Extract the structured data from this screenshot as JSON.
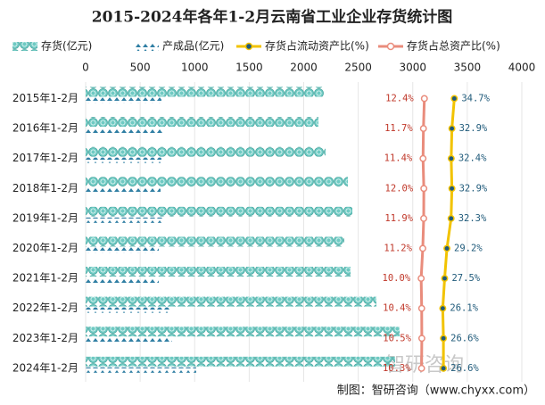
{
  "chart_data": {
    "type": "bar",
    "orientation": "horizontal",
    "title": "2015-2024年各年1-2月云南省工业企业存货统计图",
    "source": "制图：智研咨询（www.chyxx.com）",
    "watermark": "智研咨询",
    "categories": [
      "2015年1-2月",
      "2016年1-2月",
      "2017年1-2月",
      "2018年1-2月",
      "2019年1-2月",
      "2020年1-2月",
      "2021年1-2月",
      "2022年1-2月",
      "2023年1-2月",
      "2024年1-2月"
    ],
    "xlim": [
      0,
      4000
    ],
    "xticks": [
      0,
      500,
      1000,
      1500,
      2000,
      2500,
      3000,
      3500,
      4000
    ],
    "x2lim": [
      -240,
      85
    ],
    "grid": true,
    "legend": "top",
    "series": [
      {
        "name": "存货(亿元)",
        "type": "bar",
        "color": "#6fcac3",
        "values": [
          2184,
          2135,
          2200,
          2405,
          2446,
          2372,
          2430,
          2667,
          2880,
          2838
        ]
      },
      {
        "name": "产成品(亿元)",
        "type": "bar",
        "color": "#2f7ea3",
        "values": [
          695,
          712,
          695,
          687,
          712,
          671,
          671,
          769,
          793,
          1014
        ]
      },
      {
        "name": "存货占流动资产比(%)",
        "type": "line",
        "axis": "x2",
        "color": "#f2c300",
        "marker_color": "#1f5a7a",
        "label_color": "#1f5a7a",
        "values": [
          34.7,
          32.9,
          32.4,
          32.9,
          32.3,
          29.2,
          27.5,
          26.1,
          26.6,
          26.6
        ],
        "value_labels": [
          "34.7%",
          "32.9%",
          "32.4%",
          "32.9%",
          "32.3%",
          "29.2%",
          "27.5%",
          "26.1%",
          "26.6%",
          "26.6%"
        ]
      },
      {
        "name": "存货占总资产比(%)",
        "type": "line",
        "axis": "x2",
        "color": "#e98c7c",
        "marker_color": "#ffffff",
        "label_color": "#c0392b",
        "values": [
          12.4,
          11.7,
          11.4,
          12.0,
          11.9,
          11.2,
          10.0,
          10.4,
          10.5,
          10.3
        ],
        "value_labels": [
          "12.4%",
          "11.7%",
          "11.4%",
          "12.0%",
          "11.9%",
          "11.2%",
          "10.0%",
          "10.4%",
          "10.5%",
          "10.3%"
        ]
      }
    ]
  }
}
